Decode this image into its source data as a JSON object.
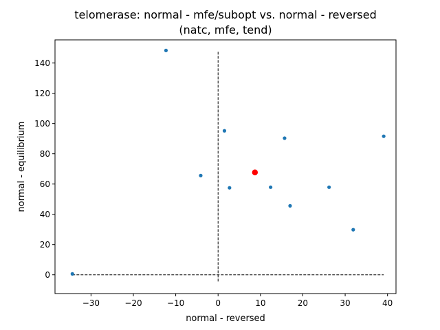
{
  "chart_data": {
    "type": "scatter",
    "title_line1": "telomerase: normal - mfe/subopt vs. normal - reversed",
    "title_line2": "(natc, mfe, tend)",
    "xlabel": "normal - reversed",
    "ylabel": "normal - equilibrium",
    "xlim": [
      -38.5,
      42.0
    ],
    "ylim": [
      -12.4,
      155.3
    ],
    "x_ticks": [
      -30,
      -20,
      -10,
      0,
      10,
      20,
      30,
      40
    ],
    "x_tick_labels": [
      "−30",
      "−20",
      "−10",
      "0",
      "10",
      "20",
      "30",
      "40"
    ],
    "y_ticks": [
      0,
      20,
      40,
      60,
      80,
      100,
      120,
      140
    ],
    "y_tick_labels": [
      "0",
      "20",
      "40",
      "60",
      "80",
      "100",
      "120",
      "140"
    ],
    "series": [
      {
        "name": "points",
        "color": "#1f77b4",
        "points": [
          {
            "x": -34.4,
            "y": 0.6
          },
          {
            "x": -12.3,
            "y": 148.3
          },
          {
            "x": -4.1,
            "y": 65.6
          },
          {
            "x": 1.5,
            "y": 95.2
          },
          {
            "x": 2.7,
            "y": 57.5
          },
          {
            "x": 12.4,
            "y": 57.9
          },
          {
            "x": 15.7,
            "y": 90.3
          },
          {
            "x": 17.0,
            "y": 45.6
          },
          {
            "x": 26.2,
            "y": 57.9
          },
          {
            "x": 31.9,
            "y": 29.8
          },
          {
            "x": 39.1,
            "y": 91.6
          }
        ]
      },
      {
        "name": "highlight",
        "color": "#ff0000",
        "points": [
          {
            "x": 8.7,
            "y": 67.7
          }
        ]
      }
    ],
    "reference_lines": [
      {
        "orientation": "vertical",
        "value": 0,
        "from": -4.4,
        "to": 148.3
      },
      {
        "orientation": "horizontal",
        "value": 0,
        "from": -34.4,
        "to": 39.1
      }
    ]
  }
}
